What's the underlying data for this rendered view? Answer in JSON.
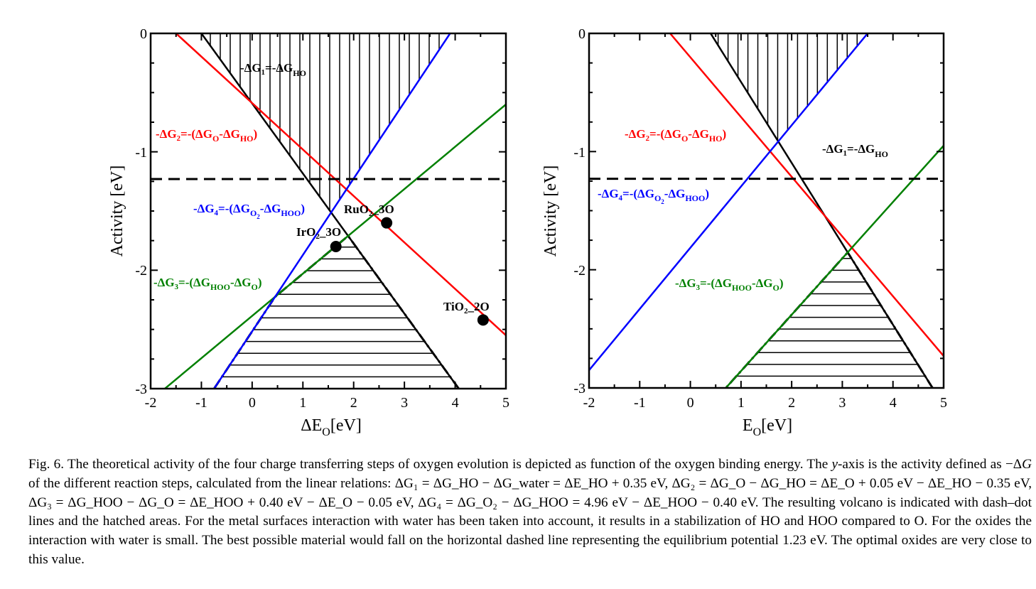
{
  "figure": {
    "panels": [
      {
        "id": "left",
        "x_label_prefix": "ΔE",
        "x_label_sub": "O",
        "x_label_suffix": "[eV]",
        "y_label": "Activity [eV]",
        "x_ticks": [
          "-2",
          "-1",
          "0",
          "1",
          "2",
          "3",
          "4",
          "5"
        ],
        "y_ticks": [
          "0",
          "-1",
          "-2",
          "-3"
        ],
        "labels": {
          "g1": "-ΔG₁=-ΔG_HO",
          "g2": "-ΔG₂=-(ΔG_O-ΔG_HO)",
          "g3": "-ΔG₃=-(ΔG_HOO-ΔG_O)",
          "g4": "-ΔG₄=-(ΔG_O₂-ΔG_HOO)"
        },
        "points": [
          {
            "name": "IrO2_3O",
            "label": "IrO₂_3O",
            "x": 1.65,
            "y": -1.8
          },
          {
            "name": "RuO2_3O",
            "label": "RuO₂_3O",
            "x": 2.65,
            "y": -1.6
          },
          {
            "name": "TiO2_2O",
            "label": "TiO₂_2O",
            "x": 4.55,
            "y": -2.42
          }
        ]
      },
      {
        "id": "right",
        "x_label_prefix": "E",
        "x_label_sub": "O",
        "x_label_suffix": "[eV]",
        "y_label": "Activity [eV]",
        "x_ticks": [
          "-2",
          "-1",
          "0",
          "1",
          "2",
          "3",
          "4",
          "5"
        ],
        "y_ticks": [
          "0",
          "-1",
          "-2",
          "-3"
        ],
        "labels": {
          "g1": "-ΔG₁=-ΔG_HO",
          "g2": "-ΔG₂=-(ΔG_O-ΔG_HO)",
          "g3": "-ΔG₃=-(ΔG_HOO-ΔG_O)",
          "g4": "-ΔG₄=-(ΔG_O₂-ΔG_HOO)"
        }
      }
    ]
  },
  "chart_data": [
    {
      "type": "line",
      "xlim": [
        -2,
        5
      ],
      "ylim": [
        -3,
        0
      ],
      "xlabel": "ΔE_O[eV]",
      "ylabel": "Activity [eV]",
      "equilibrium_potential": -1.23,
      "series": [
        {
          "name": "-ΔG1=-ΔG_HO",
          "color": "#000000",
          "x": [
            -1,
            5
          ],
          "y": [
            0,
            -3.55
          ]
        },
        {
          "name": "-ΔG2=-(ΔG_O-ΔG_HO)",
          "color": "#ff0000",
          "x": [
            -1.5,
            5
          ],
          "y": [
            0,
            -2.55
          ]
        },
        {
          "name": "-ΔG3=-(ΔG_HOO-ΔG_O)",
          "color": "#008000",
          "x": [
            -2,
            5
          ],
          "y": [
            -3.1,
            -0.6
          ]
        },
        {
          "name": "-ΔG4=-(ΔG_O2-ΔG_HOO)",
          "color": "#0000ff",
          "x": [
            -0.75,
            3.9
          ],
          "y": [
            -3,
            0
          ]
        }
      ],
      "points": [
        {
          "label": "IrO2_3O",
          "x": 1.65,
          "y": -1.8
        },
        {
          "label": "RuO2_3O",
          "x": 2.65,
          "y": -1.6
        },
        {
          "label": "TiO2_2O",
          "x": 4.55,
          "y": -2.42
        }
      ]
    },
    {
      "type": "line",
      "xlim": [
        -2,
        5
      ],
      "ylim": [
        -3,
        0
      ],
      "xlabel": "E_O[eV]",
      "ylabel": "Activity [eV]",
      "equilibrium_potential": -1.23,
      "series": [
        {
          "name": "-ΔG1=-ΔG_HO",
          "color": "#000000",
          "x": [
            0.4,
            5
          ],
          "y": [
            0,
            -3.15
          ]
        },
        {
          "name": "-ΔG2=-(ΔG_O-ΔG_HO)",
          "color": "#ff0000",
          "x": [
            -0.4,
            5
          ],
          "y": [
            0,
            -2.73
          ]
        },
        {
          "name": "-ΔG3=-(ΔG_HOO-ΔG_O)",
          "color": "#008000",
          "x": [
            0.7,
            5
          ],
          "y": [
            -3,
            -0.95
          ]
        },
        {
          "name": "-ΔG4=-(ΔG_O2-ΔG_HOO)",
          "color": "#0000ff",
          "x": [
            -2,
            3.5
          ],
          "y": [
            -2.85,
            0
          ]
        }
      ]
    }
  ],
  "caption": {
    "p1": "Fig. 6.  The theoretical activity of the four charge transferring steps of oxygen evolution is depicted as function of the oxygen binding energy. The ",
    "y_italic": "y",
    "p2": "-axis is the activity defined as −Δ",
    "G_italic": "G",
    "p3": " of the different reaction steps, calculated from the linear relations: ΔG₁ = ΔG_HO − ΔG_water = ΔE_HO + 0.35 eV, ΔG₂ = ΔG_O − ΔG_HO = ΔE_O + 0.05 eV − ΔE_HO − 0.35 eV,  ΔG₃ = ΔG_HOO − ΔG_O = ΔE_HOO + 0.40 eV − ΔE_O − 0.05 eV,  ΔG₄ = ΔG_O₂ − ΔG_HOO = 4.96 eV − ΔE_HOO − 0.40 eV. The resulting volcano is indicated with dash–dot lines and the hatched areas. For the metal surfaces interaction with water has been taken into account, it results in a stabilization of HO and HOO compared to O. For the oxides the interaction with water is small. The best possible material would fall on the horizontal dashed line representing the equilibrium potential 1.23 eV. The optimal oxides are very close to this value."
  }
}
